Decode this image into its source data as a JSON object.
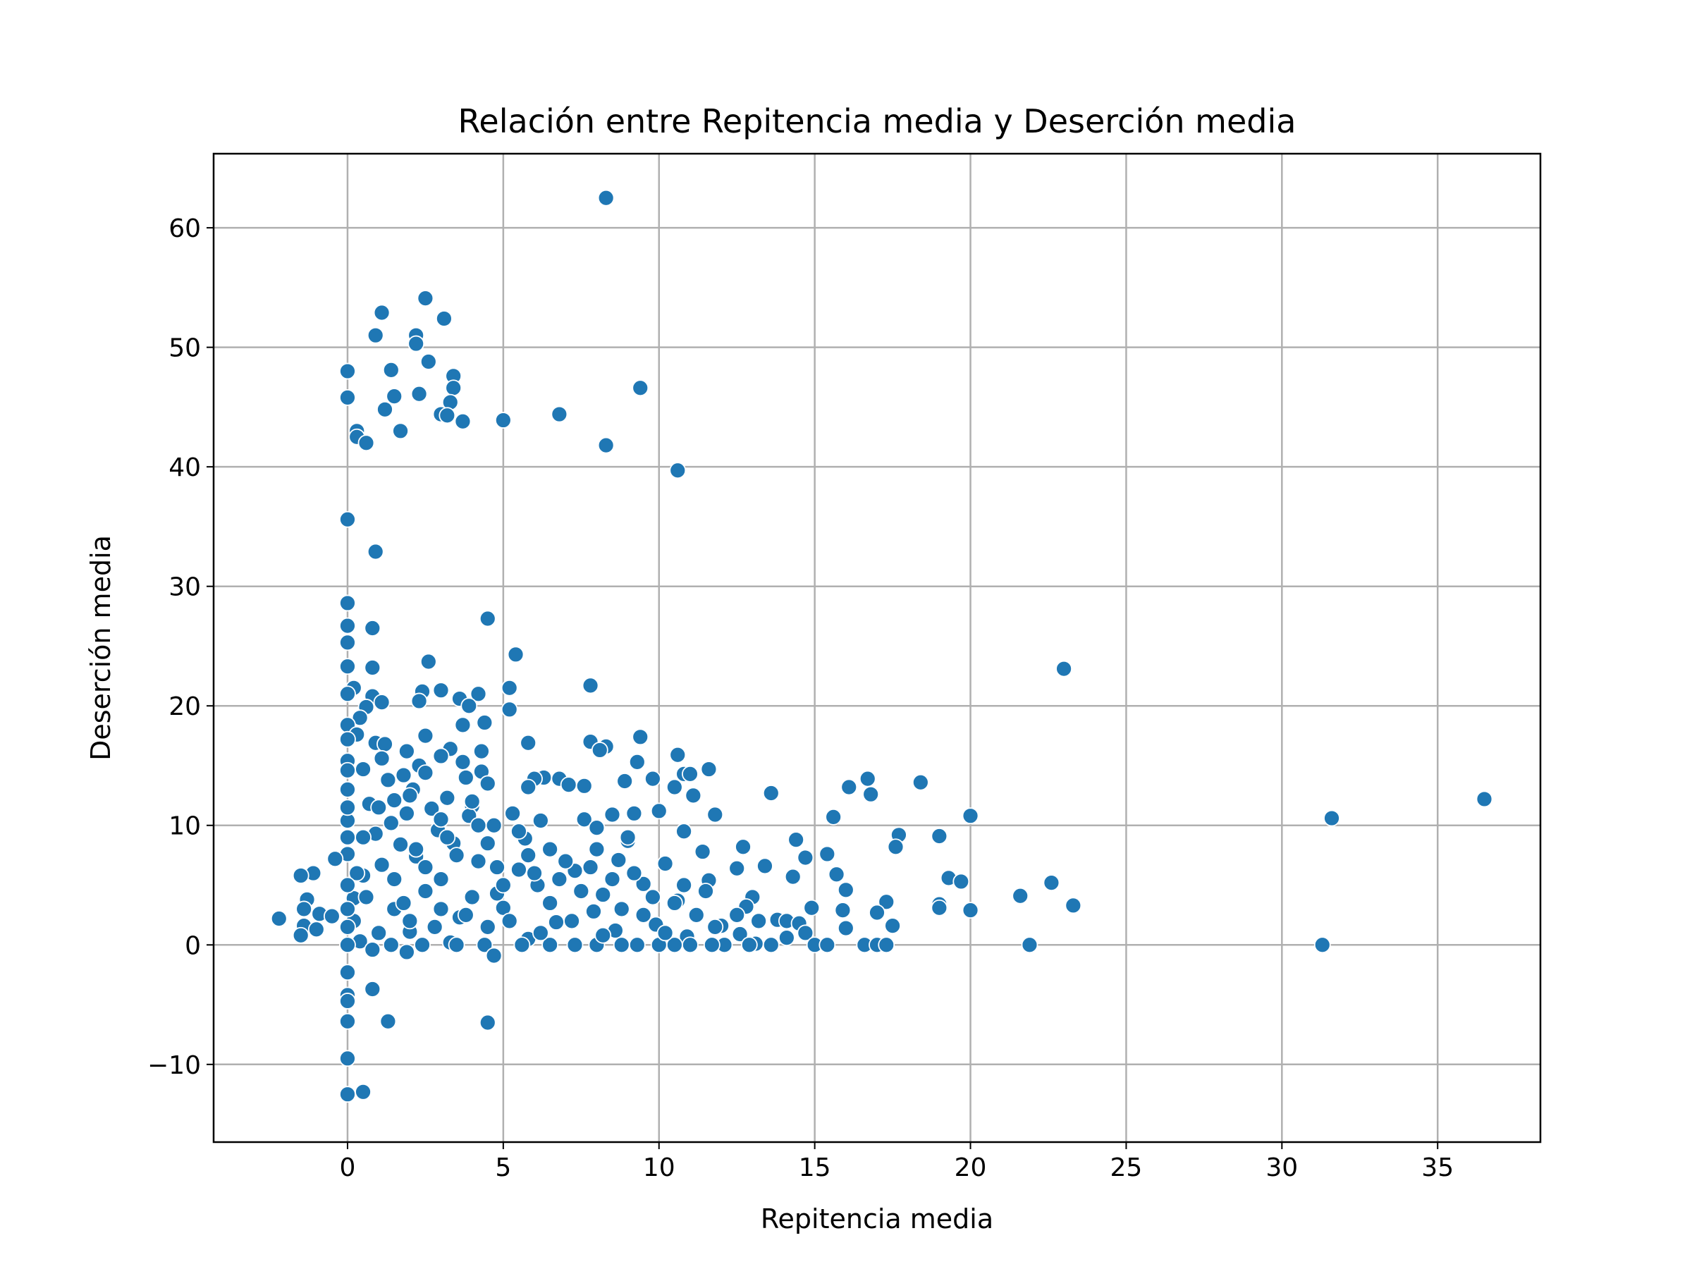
{
  "chart_data": {
    "type": "scatter",
    "title": "Relación entre Repitencia media y Deserción media",
    "xlabel": "Repitencia media",
    "ylabel": "Deserción media",
    "xlim": [
      -4.3,
      38.3
    ],
    "ylim": [
      -16.5,
      66.2
    ],
    "xticks": [
      0,
      5,
      10,
      15,
      20,
      25,
      30,
      35
    ],
    "yticks": [
      -10,
      0,
      10,
      20,
      30,
      40,
      50,
      60
    ],
    "xtick_labels": [
      "0",
      "5",
      "10",
      "15",
      "20",
      "25",
      "30",
      "35"
    ],
    "ytick_labels": [
      "−10",
      "0",
      "10",
      "20",
      "30",
      "40",
      "50",
      "60"
    ],
    "grid": true,
    "marker_color": "#1f77b4",
    "points": [
      {
        "x": 8.3,
        "y": 62.5
      },
      {
        "x": 2.5,
        "y": 54.1
      },
      {
        "x": 1.1,
        "y": 52.9
      },
      {
        "x": 3.1,
        "y": 52.4
      },
      {
        "x": 0.9,
        "y": 51.0
      },
      {
        "x": 2.2,
        "y": 51.0
      },
      {
        "x": 2.2,
        "y": 50.3
      },
      {
        "x": 2.6,
        "y": 48.8
      },
      {
        "x": 0.0,
        "y": 48.0
      },
      {
        "x": 1.4,
        "y": 48.1
      },
      {
        "x": 3.4,
        "y": 47.6
      },
      {
        "x": 3.4,
        "y": 46.6
      },
      {
        "x": 9.4,
        "y": 46.6
      },
      {
        "x": 2.3,
        "y": 46.1
      },
      {
        "x": 1.5,
        "y": 45.9
      },
      {
        "x": 0.0,
        "y": 45.8
      },
      {
        "x": 3.3,
        "y": 45.4
      },
      {
        "x": 1.2,
        "y": 44.8
      },
      {
        "x": 3.0,
        "y": 44.4
      },
      {
        "x": 3.2,
        "y": 44.3
      },
      {
        "x": 6.8,
        "y": 44.4
      },
      {
        "x": 5.0,
        "y": 43.9
      },
      {
        "x": 3.7,
        "y": 43.8
      },
      {
        "x": 0.3,
        "y": 43.0
      },
      {
        "x": 1.7,
        "y": 43.0
      },
      {
        "x": 0.3,
        "y": 42.5
      },
      {
        "x": 0.6,
        "y": 42.0
      },
      {
        "x": 8.3,
        "y": 41.8
      },
      {
        "x": 10.6,
        "y": 39.7
      },
      {
        "x": 0.0,
        "y": 35.6
      },
      {
        "x": 0.9,
        "y": 32.9
      },
      {
        "x": 0.0,
        "y": 28.6
      },
      {
        "x": 4.5,
        "y": 27.3
      },
      {
        "x": 0.0,
        "y": 26.7
      },
      {
        "x": 0.8,
        "y": 26.5
      },
      {
        "x": 0.0,
        "y": 25.3
      },
      {
        "x": 5.4,
        "y": 24.3
      },
      {
        "x": 2.6,
        "y": 23.7
      },
      {
        "x": 0.0,
        "y": 23.3
      },
      {
        "x": 0.8,
        "y": 23.2
      },
      {
        "x": 23.0,
        "y": 23.1
      },
      {
        "x": 7.8,
        "y": 21.7
      },
      {
        "x": 5.2,
        "y": 21.5
      },
      {
        "x": 0.2,
        "y": 21.5
      },
      {
        "x": 3.0,
        "y": 21.3
      },
      {
        "x": 2.4,
        "y": 21.2
      },
      {
        "x": 4.2,
        "y": 21.0
      },
      {
        "x": 0.0,
        "y": 21.0
      },
      {
        "x": 0.8,
        "y": 20.8
      },
      {
        "x": 3.6,
        "y": 20.6
      },
      {
        "x": 2.3,
        "y": 20.4
      },
      {
        "x": 1.1,
        "y": 20.3
      },
      {
        "x": 3.9,
        "y": 20.0
      },
      {
        "x": 0.6,
        "y": 19.9
      },
      {
        "x": 5.2,
        "y": 19.7
      },
      {
        "x": 0.4,
        "y": 19.0
      },
      {
        "x": 4.4,
        "y": 18.6
      },
      {
        "x": 0.0,
        "y": 18.4
      },
      {
        "x": 3.7,
        "y": 18.4
      },
      {
        "x": 0.3,
        "y": 17.6
      },
      {
        "x": 9.4,
        "y": 17.4
      },
      {
        "x": 2.5,
        "y": 17.5
      },
      {
        "x": 0.0,
        "y": 17.2
      },
      {
        "x": 7.8,
        "y": 17.0
      },
      {
        "x": 0.9,
        "y": 16.9
      },
      {
        "x": 5.8,
        "y": 16.9
      },
      {
        "x": 1.2,
        "y": 16.8
      },
      {
        "x": 8.3,
        "y": 16.6
      },
      {
        "x": 3.3,
        "y": 16.4
      },
      {
        "x": 8.1,
        "y": 16.3
      },
      {
        "x": 1.9,
        "y": 16.2
      },
      {
        "x": 4.3,
        "y": 16.2
      },
      {
        "x": 10.6,
        "y": 15.9
      },
      {
        "x": 3.0,
        "y": 15.8
      },
      {
        "x": 1.1,
        "y": 15.6
      },
      {
        "x": 0.0,
        "y": 15.4
      },
      {
        "x": 9.3,
        "y": 15.3
      },
      {
        "x": 3.7,
        "y": 15.3
      },
      {
        "x": 2.3,
        "y": 15.0
      },
      {
        "x": 0.5,
        "y": 14.7
      },
      {
        "x": 11.6,
        "y": 14.7
      },
      {
        "x": 4.3,
        "y": 14.5
      },
      {
        "x": 0.0,
        "y": 14.6
      },
      {
        "x": 2.5,
        "y": 14.4
      },
      {
        "x": 10.8,
        "y": 14.3
      },
      {
        "x": 11.0,
        "y": 14.3
      },
      {
        "x": 1.8,
        "y": 14.2
      },
      {
        "x": 3.8,
        "y": 14.0
      },
      {
        "x": 6.3,
        "y": 14.0
      },
      {
        "x": 6.0,
        "y": 13.9
      },
      {
        "x": 6.8,
        "y": 13.9
      },
      {
        "x": 16.7,
        "y": 13.9
      },
      {
        "x": 9.8,
        "y": 13.9
      },
      {
        "x": 1.3,
        "y": 13.8
      },
      {
        "x": 8.9,
        "y": 13.7
      },
      {
        "x": 18.4,
        "y": 13.6
      },
      {
        "x": 4.5,
        "y": 13.5
      },
      {
        "x": 7.1,
        "y": 13.4
      },
      {
        "x": 7.6,
        "y": 13.3
      },
      {
        "x": 16.1,
        "y": 13.2
      },
      {
        "x": 10.5,
        "y": 13.2
      },
      {
        "x": 5.8,
        "y": 13.2
      },
      {
        "x": 2.1,
        "y": 13.0
      },
      {
        "x": 0.0,
        "y": 13.0
      },
      {
        "x": 13.6,
        "y": 12.7
      },
      {
        "x": 16.8,
        "y": 12.6
      },
      {
        "x": 11.1,
        "y": 12.5
      },
      {
        "x": 3.2,
        "y": 12.3
      },
      {
        "x": 36.5,
        "y": 12.2
      },
      {
        "x": 1.5,
        "y": 12.1
      },
      {
        "x": 0.7,
        "y": 11.8
      },
      {
        "x": 4.0,
        "y": 11.6
      },
      {
        "x": 2.7,
        "y": 11.4
      },
      {
        "x": 10.0,
        "y": 11.2
      },
      {
        "x": 9.2,
        "y": 11.0
      },
      {
        "x": 1.9,
        "y": 11.0
      },
      {
        "x": 5.3,
        "y": 11.0
      },
      {
        "x": 11.8,
        "y": 10.9
      },
      {
        "x": 8.5,
        "y": 10.9
      },
      {
        "x": 20.0,
        "y": 10.8
      },
      {
        "x": 15.6,
        "y": 10.7
      },
      {
        "x": 31.6,
        "y": 10.6
      },
      {
        "x": 3.9,
        "y": 10.8
      },
      {
        "x": 7.6,
        "y": 10.5
      },
      {
        "x": 6.2,
        "y": 10.4
      },
      {
        "x": 0.0,
        "y": 10.4
      },
      {
        "x": 1.4,
        "y": 10.2
      },
      {
        "x": 4.7,
        "y": 10.0
      },
      {
        "x": 8.0,
        "y": 9.8
      },
      {
        "x": 10.8,
        "y": 9.5
      },
      {
        "x": 2.9,
        "y": 9.6
      },
      {
        "x": 0.9,
        "y": 9.3
      },
      {
        "x": 17.7,
        "y": 9.2
      },
      {
        "x": 19.0,
        "y": 9.1
      },
      {
        "x": 14.4,
        "y": 8.8
      },
      {
        "x": 5.7,
        "y": 8.9
      },
      {
        "x": 9.0,
        "y": 8.7
      },
      {
        "x": 3.4,
        "y": 8.5
      },
      {
        "x": 1.7,
        "y": 8.4
      },
      {
        "x": 12.7,
        "y": 8.2
      },
      {
        "x": 17.6,
        "y": 8.2
      },
      {
        "x": 6.5,
        "y": 8.0
      },
      {
        "x": 11.4,
        "y": 7.8
      },
      {
        "x": 0.0,
        "y": 7.6
      },
      {
        "x": 15.4,
        "y": 7.6
      },
      {
        "x": 2.2,
        "y": 7.4
      },
      {
        "x": 14.7,
        "y": 7.3
      },
      {
        "x": -0.4,
        "y": 7.2
      },
      {
        "x": 8.7,
        "y": 7.1
      },
      {
        "x": 4.2,
        "y": 7.0
      },
      {
        "x": 10.2,
        "y": 6.8
      },
      {
        "x": 1.1,
        "y": 6.7
      },
      {
        "x": 13.4,
        "y": 6.6
      },
      {
        "x": 12.5,
        "y": 6.4
      },
      {
        "x": 5.5,
        "y": 6.3
      },
      {
        "x": 7.3,
        "y": 6.2
      },
      {
        "x": -1.1,
        "y": 6.0
      },
      {
        "x": 15.7,
        "y": 5.9
      },
      {
        "x": 0.5,
        "y": 5.8
      },
      {
        "x": -1.5,
        "y": 5.8
      },
      {
        "x": 14.3,
        "y": 5.7
      },
      {
        "x": 19.3,
        "y": 5.6
      },
      {
        "x": 3.0,
        "y": 5.5
      },
      {
        "x": 11.6,
        "y": 5.4
      },
      {
        "x": 19.7,
        "y": 5.3
      },
      {
        "x": 22.6,
        "y": 5.2
      },
      {
        "x": 9.5,
        "y": 5.1
      },
      {
        "x": 6.1,
        "y": 5.0
      },
      {
        "x": 16.0,
        "y": 4.6
      },
      {
        "x": 2.5,
        "y": 4.5
      },
      {
        "x": 4.8,
        "y": 4.3
      },
      {
        "x": 8.2,
        "y": 4.2
      },
      {
        "x": 21.6,
        "y": 4.1
      },
      {
        "x": 13.0,
        "y": 4.0
      },
      {
        "x": 0.2,
        "y": 3.9
      },
      {
        "x": -1.3,
        "y": 3.8
      },
      {
        "x": 10.6,
        "y": 3.7
      },
      {
        "x": 17.3,
        "y": 3.6
      },
      {
        "x": 19.0,
        "y": 3.4
      },
      {
        "x": 23.3,
        "y": 3.3
      },
      {
        "x": 12.8,
        "y": 3.2
      },
      {
        "x": 5.0,
        "y": 3.1
      },
      {
        "x": 19.0,
        "y": 3.1
      },
      {
        "x": 14.9,
        "y": 3.1
      },
      {
        "x": -1.4,
        "y": 3.0
      },
      {
        "x": 1.5,
        "y": 3.0
      },
      {
        "x": 15.9,
        "y": 2.9
      },
      {
        "x": 20.0,
        "y": 2.9
      },
      {
        "x": 7.9,
        "y": 2.8
      },
      {
        "x": 17.0,
        "y": 2.7
      },
      {
        "x": -0.9,
        "y": 2.6
      },
      {
        "x": 11.2,
        "y": 2.5
      },
      {
        "x": -0.5,
        "y": 2.4
      },
      {
        "x": -2.2,
        "y": 2.2
      },
      {
        "x": 3.6,
        "y": 2.3
      },
      {
        "x": 13.8,
        "y": 2.1
      },
      {
        "x": 14.1,
        "y": 2.0
      },
      {
        "x": 13.2,
        "y": 2.0
      },
      {
        "x": 6.7,
        "y": 1.9
      },
      {
        "x": 14.5,
        "y": 1.8
      },
      {
        "x": 9.9,
        "y": 1.7
      },
      {
        "x": 12.0,
        "y": 1.6
      },
      {
        "x": -1.4,
        "y": 1.6
      },
      {
        "x": 17.5,
        "y": 1.6
      },
      {
        "x": 4.5,
        "y": 1.5
      },
      {
        "x": 16.0,
        "y": 1.4
      },
      {
        "x": -1.0,
        "y": 1.3
      },
      {
        "x": 8.6,
        "y": 1.2
      },
      {
        "x": 2.0,
        "y": 1.1
      },
      {
        "x": 14.7,
        "y": 1.0
      },
      {
        "x": 12.6,
        "y": 0.9
      },
      {
        "x": -1.5,
        "y": 0.8
      },
      {
        "x": 10.9,
        "y": 0.7
      },
      {
        "x": 14.1,
        "y": 0.6
      },
      {
        "x": 5.8,
        "y": 0.5
      },
      {
        "x": 0.4,
        "y": 0.3
      },
      {
        "x": 3.3,
        "y": 0.2
      },
      {
        "x": 13.1,
        "y": 0.1
      },
      {
        "x": 0.0,
        "y": 0.0
      },
      {
        "x": 15.0,
        "y": 0.0
      },
      {
        "x": 15.4,
        "y": 0.0
      },
      {
        "x": 16.6,
        "y": 0.0
      },
      {
        "x": 17.0,
        "y": 0.0
      },
      {
        "x": 17.3,
        "y": 0.0
      },
      {
        "x": 21.9,
        "y": 0.0
      },
      {
        "x": 31.3,
        "y": 0.0
      },
      {
        "x": 13.6,
        "y": 0.0
      },
      {
        "x": 12.9,
        "y": 0.0
      },
      {
        "x": 12.1,
        "y": 0.0
      },
      {
        "x": 11.7,
        "y": 0.0
      },
      {
        "x": 11.0,
        "y": 0.0
      },
      {
        "x": 10.5,
        "y": 0.0
      },
      {
        "x": 10.0,
        "y": 0.0
      },
      {
        "x": 9.3,
        "y": 0.0
      },
      {
        "x": 8.8,
        "y": 0.0
      },
      {
        "x": 8.0,
        "y": 0.0
      },
      {
        "x": 7.3,
        "y": 0.0
      },
      {
        "x": 6.5,
        "y": 0.0
      },
      {
        "x": 5.6,
        "y": 0.0
      },
      {
        "x": 4.4,
        "y": 0.0
      },
      {
        "x": 3.5,
        "y": 0.0
      },
      {
        "x": 2.4,
        "y": 0.0
      },
      {
        "x": 1.4,
        "y": 0.0
      },
      {
        "x": 0.8,
        "y": -0.4
      },
      {
        "x": 1.9,
        "y": -0.6
      },
      {
        "x": 4.7,
        "y": -0.9
      },
      {
        "x": 0.0,
        "y": -2.3
      },
      {
        "x": 0.8,
        "y": -3.7
      },
      {
        "x": 0.0,
        "y": -4.2
      },
      {
        "x": 0.0,
        "y": -4.7
      },
      {
        "x": 0.0,
        "y": -6.4
      },
      {
        "x": 1.3,
        "y": -6.4
      },
      {
        "x": 4.5,
        "y": -6.5
      },
      {
        "x": 0.0,
        "y": -9.5
      },
      {
        "x": 0.0,
        "y": -12.5
      },
      {
        "x": 0.5,
        "y": -12.3
      },
      {
        "x": 1.0,
        "y": 1.0
      },
      {
        "x": 2.0,
        "y": 2.0
      },
      {
        "x": 3.0,
        "y": 3.0
      },
      {
        "x": 4.0,
        "y": 4.0
      },
      {
        "x": 5.0,
        "y": 5.0
      },
      {
        "x": 6.0,
        "y": 6.0
      },
      {
        "x": 7.0,
        "y": 7.0
      },
      {
        "x": 8.0,
        "y": 8.0
      },
      {
        "x": 9.0,
        "y": 9.0
      },
      {
        "x": 1.5,
        "y": 5.5
      },
      {
        "x": 2.5,
        "y": 6.5
      },
      {
        "x": 3.5,
        "y": 7.5
      },
      {
        "x": 4.5,
        "y": 8.5
      },
      {
        "x": 5.5,
        "y": 9.5
      },
      {
        "x": 6.5,
        "y": 3.5
      },
      {
        "x": 7.5,
        "y": 4.5
      },
      {
        "x": 8.5,
        "y": 5.5
      },
      {
        "x": 9.5,
        "y": 2.5
      },
      {
        "x": 10.5,
        "y": 3.5
      },
      {
        "x": 11.5,
        "y": 4.5
      },
      {
        "x": 12.5,
        "y": 2.5
      },
      {
        "x": 0.5,
        "y": 9.0
      },
      {
        "x": 1.0,
        "y": 11.5
      },
      {
        "x": 2.0,
        "y": 12.5
      },
      {
        "x": 3.0,
        "y": 10.5
      },
      {
        "x": 4.0,
        "y": 12.0
      },
      {
        "x": 0.3,
        "y": 6.0
      },
      {
        "x": 0.6,
        "y": 4.0
      },
      {
        "x": 0.2,
        "y": 2.0
      },
      {
        "x": 1.8,
        "y": 3.5
      },
      {
        "x": 2.8,
        "y": 1.5
      },
      {
        "x": 3.8,
        "y": 2.5
      },
      {
        "x": 4.8,
        "y": 6.5
      },
      {
        "x": 5.8,
        "y": 7.5
      },
      {
        "x": 6.8,
        "y": 5.5
      },
      {
        "x": 7.8,
        "y": 6.5
      },
      {
        "x": 8.8,
        "y": 3.0
      },
      {
        "x": 9.8,
        "y": 4.0
      },
      {
        "x": 10.8,
        "y": 5.0
      },
      {
        "x": 11.8,
        "y": 1.5
      },
      {
        "x": 0.0,
        "y": 5.0
      },
      {
        "x": 0.0,
        "y": 9.0
      },
      {
        "x": 0.0,
        "y": 11.5
      },
      {
        "x": 0.0,
        "y": 3.0
      },
      {
        "x": 0.0,
        "y": 1.5
      },
      {
        "x": 2.2,
        "y": 8.0
      },
      {
        "x": 3.2,
        "y": 9.0
      },
      {
        "x": 4.2,
        "y": 10.0
      },
      {
        "x": 5.2,
        "y": 2.0
      },
      {
        "x": 6.2,
        "y": 1.0
      },
      {
        "x": 7.2,
        "y": 2.0
      },
      {
        "x": 8.2,
        "y": 0.8
      },
      {
        "x": 9.2,
        "y": 6.0
      },
      {
        "x": 10.2,
        "y": 1.0
      }
    ]
  }
}
